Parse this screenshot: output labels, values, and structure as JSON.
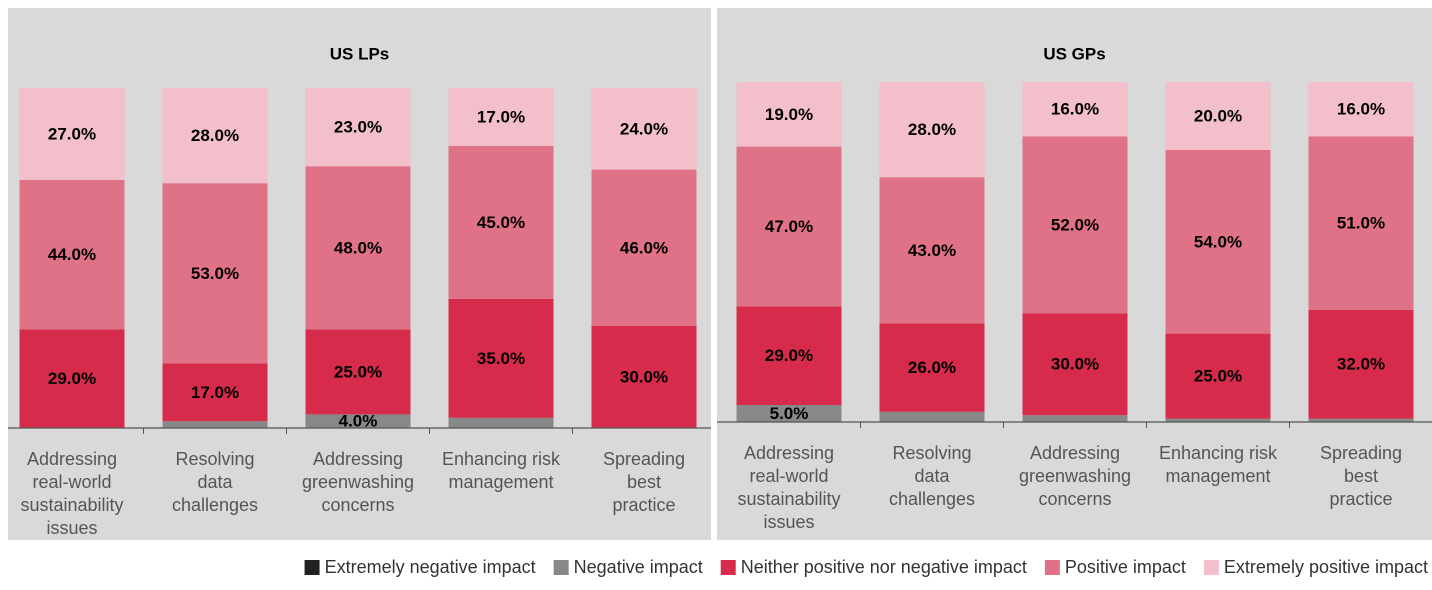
{
  "chart_data": [
    {
      "type": "stacked-bar",
      "title": "US LPs",
      "categories": [
        "Addressing\nreal-world\nsustainability\nissues",
        "Resolving\ndata\nchallenges",
        "Addressing\ngreenwashing\nconcerns",
        "Enhancing risk\nmanagement",
        "Spreading\nbest\npractice"
      ],
      "ylim": [
        0,
        100
      ],
      "series": [
        {
          "name": "Extremely negative impact",
          "color": "#222222",
          "values": [
            0,
            0,
            0,
            0,
            0
          ]
        },
        {
          "name": "Negative impact",
          "color": "#888888",
          "values": [
            0,
            2,
            4,
            3,
            0
          ],
          "value_labels": [
            null,
            null,
            "4.0%",
            null,
            null
          ]
        },
        {
          "name": "Neither positive nor negative impact",
          "color": "#d62b4b",
          "values": [
            29,
            17,
            25,
            35,
            30
          ],
          "value_labels": [
            "29.0%",
            "17.0%",
            "25.0%",
            "35.0%",
            "30.0%"
          ]
        },
        {
          "name": "Positive impact",
          "color": "#e07287",
          "values": [
            44,
            53,
            48,
            45,
            46
          ],
          "value_labels": [
            "44.0%",
            "53.0%",
            "48.0%",
            "45.0%",
            "46.0%"
          ]
        },
        {
          "name": "Extremely positive impact",
          "color": "#f2bfca",
          "values": [
            27,
            28,
            23,
            17,
            24
          ],
          "value_labels": [
            "27.0%",
            "28.0%",
            "23.0%",
            "17.0%",
            "24.0%"
          ]
        }
      ]
    },
    {
      "type": "stacked-bar",
      "title": "US GPs",
      "categories": [
        "Addressing\nreal-world\nsustainability\nissues",
        "Resolving\ndata\nchallenges",
        "Addressing\ngreenwashing\nconcerns",
        "Enhancing risk\nmanagement",
        "Spreading\nbest\npractice"
      ],
      "ylim": [
        0,
        100
      ],
      "series": [
        {
          "name": "Extremely negative impact",
          "color": "#222222",
          "values": [
            0,
            0,
            0,
            0,
            0
          ]
        },
        {
          "name": "Negative impact",
          "color": "#888888",
          "values": [
            5,
            3,
            2,
            1,
            1
          ],
          "value_labels": [
            "5.0%",
            null,
            null,
            null,
            null
          ]
        },
        {
          "name": "Neither positive nor negative impact",
          "color": "#d62b4b",
          "values": [
            29,
            26,
            30,
            25,
            32
          ],
          "value_labels": [
            "29.0%",
            "26.0%",
            "30.0%",
            "25.0%",
            "32.0%"
          ]
        },
        {
          "name": "Positive impact",
          "color": "#e07287",
          "values": [
            47,
            43,
            52,
            54,
            51
          ],
          "value_labels": [
            "47.0%",
            "43.0%",
            "52.0%",
            "54.0%",
            "51.0%"
          ]
        },
        {
          "name": "Extremely positive impact",
          "color": "#f2bfca",
          "values": [
            19,
            28,
            16,
            20,
            16
          ],
          "value_labels": [
            "19.0%",
            "28.0%",
            "16.0%",
            "20.0%",
            "16.0%"
          ]
        }
      ]
    }
  ]
}
